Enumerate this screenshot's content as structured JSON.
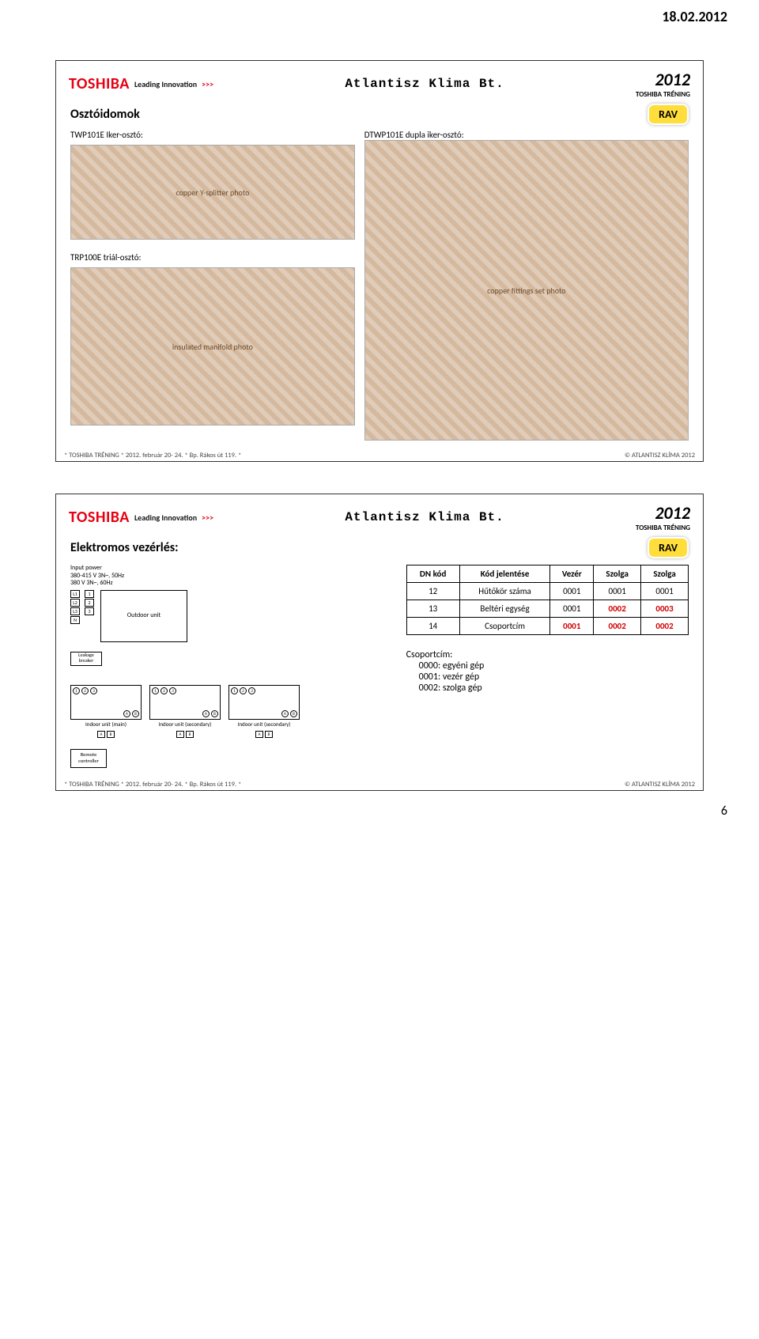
{
  "page_date": "18.02.2012",
  "page_number": "6",
  "brand": {
    "name": "TOSHIBA",
    "tagline": "Leading Innovation",
    "chev": ">>>"
  },
  "partner": "Atlantisz Klima Bt.",
  "year": "2012",
  "year_sub": "TOSHIBA TRÉNING",
  "badge": "RAV",
  "slide1": {
    "title": "Osztóidomok",
    "label_twp": "TWP101E Iker-osztó:",
    "label_dtwp": "DTWP101E dupla iker-osztó:",
    "label_trp": "TRP100E triál-osztó:",
    "img1_alt": "copper Y-splitter photo",
    "img2_alt": "copper fittings set photo",
    "img3_alt": "insulated manifold photo"
  },
  "footer_left": "*  TOSHIBA TRÉNING  *  2012.  február 20- 24.   *  Bp. Rákos út 119.  *",
  "footer_right": "©  ATLANTISZ KLÍMA 2012",
  "slide2": {
    "title": "Elektromos vezérlés:",
    "diagram": {
      "input_power": "Input power",
      "volt1": "380-415 V 3N~, 50Hz",
      "volt2": "380 V 3N~, 60Hz",
      "outdoor": "Outdoor unit",
      "leakage": "Leakage breaker",
      "indoor_main": "Indoor unit (main)",
      "indoor_sec": "Indoor unit (secondary)",
      "remote": "Remote controller"
    },
    "table": {
      "headers": [
        "DN kód",
        "Kód jelentése",
        "Vezér",
        "Szolga",
        "Szolga"
      ],
      "rows": [
        {
          "cells": [
            "12",
            "Hűtőkör száma",
            "0001",
            "0001",
            "0001"
          ],
          "red": []
        },
        {
          "cells": [
            "13",
            "Beltéri egység",
            "0001",
            "0002",
            "0003"
          ],
          "red": [
            3,
            4
          ]
        },
        {
          "cells": [
            "14",
            "Csoportcím",
            "0001",
            "0002",
            "0002"
          ],
          "red": [
            2,
            3,
            4
          ]
        }
      ]
    },
    "group": {
      "title": "Csoportcím:",
      "l1": "0000: egyéni gép",
      "l2": "0001: vezér gép",
      "l3": "0002: szolga gép"
    }
  }
}
